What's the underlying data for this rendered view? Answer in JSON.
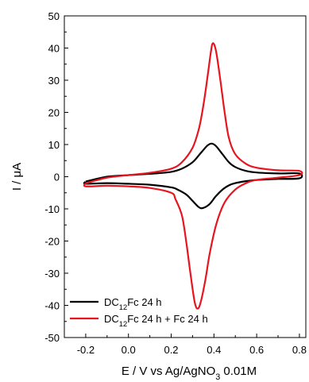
{
  "chart_data": {
    "type": "line",
    "xlabel_parts": [
      "E / V vs Ag/AgNO",
      "3",
      " 0.01M"
    ],
    "ylabel": "I / μA",
    "xlim": [
      -0.3,
      0.83
    ],
    "ylim": [
      -50,
      50
    ],
    "x_ticks": [
      -0.2,
      0.0,
      0.2,
      0.4,
      0.6,
      0.8
    ],
    "x_tick_labels": [
      "-0.2",
      "0.0",
      "0.2",
      "0.4",
      "0.6",
      "0.8"
    ],
    "y_ticks": [
      -50,
      -40,
      -30,
      -20,
      -10,
      0,
      10,
      20,
      30,
      40,
      50
    ],
    "y_tick_labels": [
      "-50",
      "-40",
      "-30",
      "-20",
      "-10",
      "0",
      "10",
      "20",
      "30",
      "40",
      "50"
    ],
    "legend_position": "bottom-left",
    "series": [
      {
        "name_parts": [
          "DC",
          "12",
          "Fc 24 h"
        ],
        "color": "#000000",
        "forward": [
          [
            -0.2,
            -1.5
          ],
          [
            -0.1,
            0.0
          ],
          [
            0.0,
            0.5
          ],
          [
            0.1,
            0.9
          ],
          [
            0.2,
            1.5
          ],
          [
            0.25,
            2.5
          ],
          [
            0.3,
            4.5
          ],
          [
            0.34,
            7.5
          ],
          [
            0.37,
            9.7
          ],
          [
            0.39,
            10.3
          ],
          [
            0.41,
            9.5
          ],
          [
            0.44,
            7.0
          ],
          [
            0.47,
            4.5
          ],
          [
            0.5,
            3.0
          ],
          [
            0.55,
            1.8
          ],
          [
            0.6,
            1.3
          ],
          [
            0.7,
            1.0
          ],
          [
            0.8,
            1.0
          ]
        ],
        "reverse": [
          [
            0.8,
            -0.5
          ],
          [
            0.7,
            -0.7
          ],
          [
            0.6,
            -1.0
          ],
          [
            0.5,
            -2.0
          ],
          [
            0.45,
            -3.5
          ],
          [
            0.41,
            -6.0
          ],
          [
            0.38,
            -8.5
          ],
          [
            0.35,
            -9.7
          ],
          [
            0.33,
            -9.5
          ],
          [
            0.3,
            -7.5
          ],
          [
            0.27,
            -5.5
          ],
          [
            0.23,
            -4.0
          ],
          [
            0.2,
            -3.3
          ],
          [
            0.1,
            -2.5
          ],
          [
            0.0,
            -2.2
          ],
          [
            -0.1,
            -2.0
          ],
          [
            -0.2,
            -2.2
          ]
        ]
      },
      {
        "name_parts": [
          "DC",
          "12",
          "Fc 24 h + Fc 24 h"
        ],
        "color": "#e8141e",
        "forward": [
          [
            -0.2,
            -2.0
          ],
          [
            -0.1,
            -0.3
          ],
          [
            0.0,
            0.5
          ],
          [
            0.1,
            1.2
          ],
          [
            0.2,
            2.5
          ],
          [
            0.25,
            4.5
          ],
          [
            0.3,
            9.0
          ],
          [
            0.33,
            15.0
          ],
          [
            0.35,
            22.0
          ],
          [
            0.37,
            31.0
          ],
          [
            0.385,
            38.5
          ],
          [
            0.395,
            41.5
          ],
          [
            0.41,
            39.0
          ],
          [
            0.43,
            30.0
          ],
          [
            0.45,
            20.0
          ],
          [
            0.47,
            12.0
          ],
          [
            0.5,
            7.0
          ],
          [
            0.55,
            4.0
          ],
          [
            0.6,
            2.8
          ],
          [
            0.7,
            2.0
          ],
          [
            0.8,
            1.8
          ]
        ],
        "reverse": [
          [
            0.8,
            0.5
          ],
          [
            0.7,
            -0.3
          ],
          [
            0.6,
            -1.0
          ],
          [
            0.55,
            -2.0
          ],
          [
            0.5,
            -4.0
          ],
          [
            0.45,
            -8.0
          ],
          [
            0.41,
            -15.0
          ],
          [
            0.38,
            -24.0
          ],
          [
            0.36,
            -32.0
          ],
          [
            0.34,
            -38.5
          ],
          [
            0.325,
            -41.0
          ],
          [
            0.31,
            -39.0
          ],
          [
            0.29,
            -30.0
          ],
          [
            0.27,
            -20.0
          ],
          [
            0.25,
            -12.0
          ],
          [
            0.22,
            -7.0
          ],
          [
            0.2,
            -5.0
          ],
          [
            0.1,
            -3.5
          ],
          [
            0.0,
            -3.0
          ],
          [
            -0.1,
            -2.8
          ],
          [
            -0.2,
            -3.0
          ]
        ]
      }
    ]
  }
}
